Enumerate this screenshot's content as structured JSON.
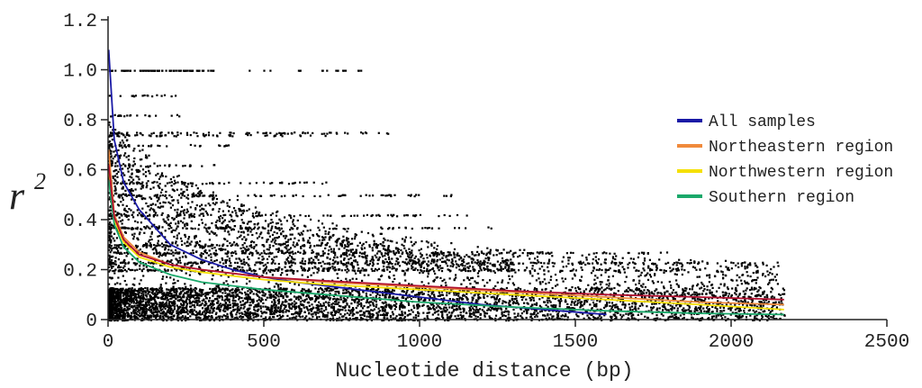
{
  "chart_data": {
    "type": "scatter",
    "title": "",
    "xlabel": "Nucleotide distance (bp)",
    "ylabel": "r",
    "ylabel_superscript": "2",
    "xlim": [
      0,
      2500
    ],
    "ylim": [
      0,
      1.2
    ],
    "xticks": [
      "0",
      "500",
      "1000",
      "1500",
      "2000",
      "2500"
    ],
    "yticks": [
      "0",
      "0.2",
      "0.4",
      "0.6",
      "0.8",
      "1.0",
      "1.2"
    ],
    "xtick_values": [
      0,
      500,
      1000,
      1500,
      2000,
      2500
    ],
    "ytick_values": [
      0,
      0.2,
      0.4,
      0.6,
      0.8,
      1.0,
      1.2
    ],
    "grid": false,
    "legend_position": "right",
    "point_color": "#000000",
    "series": [
      {
        "name": "All samples",
        "color": "#1a1aa6",
        "x": [
          2,
          20,
          50,
          100,
          200,
          300,
          400,
          500,
          600,
          800,
          1000,
          1200,
          1400,
          1600
        ],
        "y": [
          1.08,
          0.72,
          0.55,
          0.44,
          0.3,
          0.24,
          0.2,
          0.17,
          0.15,
          0.12,
          0.09,
          0.06,
          0.04,
          0.02
        ]
      },
      {
        "name": "Northeastern region",
        "color": "#f08a3c",
        "x": [
          2,
          20,
          50,
          100,
          200,
          300,
          500,
          700,
          1000,
          1300,
          1600,
          1900,
          2170
        ],
        "y": [
          0.68,
          0.42,
          0.33,
          0.27,
          0.22,
          0.2,
          0.17,
          0.15,
          0.13,
          0.11,
          0.09,
          0.07,
          0.06
        ]
      },
      {
        "name": "Northwestern region",
        "color": "#f5e000",
        "x": [
          2,
          20,
          50,
          100,
          200,
          300,
          500,
          700,
          1000,
          1300,
          1600,
          1900,
          2170
        ],
        "y": [
          0.6,
          0.4,
          0.31,
          0.25,
          0.21,
          0.19,
          0.16,
          0.14,
          0.12,
          0.1,
          0.08,
          0.06,
          0.04
        ]
      },
      {
        "name": "Southern region",
        "color": "#1aa86a",
        "x": [
          2,
          20,
          50,
          100,
          200,
          300,
          500,
          700,
          1000,
          1300,
          1600,
          1900,
          2170
        ],
        "y": [
          0.56,
          0.38,
          0.29,
          0.23,
          0.18,
          0.15,
          0.12,
          0.1,
          0.07,
          0.05,
          0.035,
          0.025,
          0.02
        ]
      },
      {
        "name": "",
        "color": "#b01030",
        "x": [
          2,
          20,
          50,
          100,
          200,
          300,
          500,
          700,
          1000,
          1300,
          1600,
          1900,
          2170
        ],
        "y": [
          0.62,
          0.41,
          0.32,
          0.26,
          0.22,
          0.2,
          0.17,
          0.155,
          0.135,
          0.115,
          0.1,
          0.09,
          0.08
        ]
      }
    ]
  }
}
